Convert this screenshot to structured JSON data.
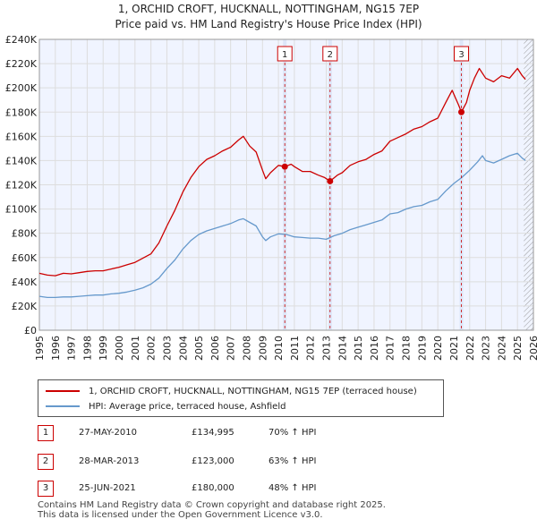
{
  "chart_data": {
    "type": "line",
    "title": "1, ORCHID CROFT, HUCKNALL, NOTTINGHAM, NG15 7EP",
    "subtitle": "Price paid vs. HM Land Registry's House Price Index (HPI)",
    "xlim": [
      1995,
      2026
    ],
    "ylim": [
      0,
      240000
    ],
    "x_ticks": [
      "1995",
      "1996",
      "1997",
      "1998",
      "1999",
      "2000",
      "2001",
      "2002",
      "2003",
      "2004",
      "2005",
      "2006",
      "2007",
      "2008",
      "2009",
      "2010",
      "2011",
      "2012",
      "2013",
      "2014",
      "2015",
      "2016",
      "2017",
      "2018",
      "2019",
      "2020",
      "2021",
      "2022",
      "2023",
      "2024",
      "2025",
      "2026"
    ],
    "y_ticks": [
      {
        "value": 0,
        "label": "£0"
      },
      {
        "value": 20000,
        "label": "£20K"
      },
      {
        "value": 40000,
        "label": "£40K"
      },
      {
        "value": 60000,
        "label": "£60K"
      },
      {
        "value": 80000,
        "label": "£80K"
      },
      {
        "value": 100000,
        "label": "£100K"
      },
      {
        "value": 120000,
        "label": "£120K"
      },
      {
        "value": 140000,
        "label": "£140K"
      },
      {
        "value": 160000,
        "label": "£160K"
      },
      {
        "value": 180000,
        "label": "£180K"
      },
      {
        "value": 200000,
        "label": "£200K"
      },
      {
        "value": 220000,
        "label": "£220K"
      },
      {
        "value": 240000,
        "label": "£240K"
      }
    ],
    "grid": true,
    "series": [
      {
        "name": "1, ORCHID CROFT, HUCKNALL, NOTTINGHAM, NG15 7EP (terraced house)",
        "color": "#cc0000",
        "points": [
          [
            1995.0,
            47000
          ],
          [
            1995.5,
            45500
          ],
          [
            1996.0,
            45000
          ],
          [
            1996.5,
            47000
          ],
          [
            1997.0,
            46500
          ],
          [
            1997.5,
            47500
          ],
          [
            1998.0,
            48500
          ],
          [
            1998.5,
            49000
          ],
          [
            1999.0,
            49000
          ],
          [
            1999.5,
            50500
          ],
          [
            2000.0,
            52000
          ],
          [
            2000.5,
            54000
          ],
          [
            2001.0,
            56000
          ],
          [
            2001.5,
            59500
          ],
          [
            2002.0,
            63000
          ],
          [
            2002.5,
            72000
          ],
          [
            2003.0,
            86000
          ],
          [
            2003.5,
            99000
          ],
          [
            2004.0,
            114000
          ],
          [
            2004.5,
            126000
          ],
          [
            2005.0,
            135000
          ],
          [
            2005.5,
            141000
          ],
          [
            2006.0,
            144000
          ],
          [
            2006.5,
            148000
          ],
          [
            2007.0,
            151000
          ],
          [
            2007.5,
            157000
          ],
          [
            2007.8,
            160000
          ],
          [
            2008.2,
            152000
          ],
          [
            2008.6,
            147000
          ],
          [
            2009.0,
            132000
          ],
          [
            2009.2,
            125000
          ],
          [
            2009.5,
            130000
          ],
          [
            2010.0,
            136000
          ],
          [
            2010.4,
            134995
          ],
          [
            2010.8,
            137000
          ],
          [
            2011.0,
            135000
          ],
          [
            2011.5,
            131000
          ],
          [
            2012.0,
            131000
          ],
          [
            2012.5,
            128000
          ],
          [
            2012.9,
            126000
          ],
          [
            2013.24,
            123000
          ],
          [
            2013.7,
            128000
          ],
          [
            2014.0,
            130000
          ],
          [
            2014.5,
            136000
          ],
          [
            2015.0,
            139000
          ],
          [
            2015.5,
            141000
          ],
          [
            2016.0,
            145000
          ],
          [
            2016.5,
            148000
          ],
          [
            2017.0,
            156000
          ],
          [
            2017.5,
            159000
          ],
          [
            2018.0,
            162000
          ],
          [
            2018.5,
            166000
          ],
          [
            2019.0,
            168000
          ],
          [
            2019.5,
            172000
          ],
          [
            2020.0,
            175000
          ],
          [
            2020.5,
            188000
          ],
          [
            2020.9,
            198000
          ],
          [
            2021.1,
            192000
          ],
          [
            2021.3,
            186000
          ],
          [
            2021.48,
            180000
          ],
          [
            2021.8,
            188000
          ],
          [
            2022.0,
            198000
          ],
          [
            2022.3,
            208000
          ],
          [
            2022.6,
            216000
          ],
          [
            2023.0,
            208000
          ],
          [
            2023.5,
            205000
          ],
          [
            2024.0,
            210000
          ],
          [
            2024.5,
            208000
          ],
          [
            2025.0,
            216000
          ],
          [
            2025.3,
            210000
          ],
          [
            2025.5,
            207000
          ]
        ]
      },
      {
        "name": "HPI: Average price, terraced house, Ashfield",
        "color": "#6699cc",
        "points": [
          [
            1995.0,
            28000
          ],
          [
            1995.5,
            27000
          ],
          [
            1996.0,
            27000
          ],
          [
            1996.5,
            27500
          ],
          [
            1997.0,
            27500
          ],
          [
            1997.5,
            28000
          ],
          [
            1998.0,
            28500
          ],
          [
            1998.5,
            29000
          ],
          [
            1999.0,
            29000
          ],
          [
            1999.5,
            30000
          ],
          [
            2000.0,
            30500
          ],
          [
            2000.5,
            31500
          ],
          [
            2001.0,
            33000
          ],
          [
            2001.5,
            35000
          ],
          [
            2002.0,
            38000
          ],
          [
            2002.5,
            43000
          ],
          [
            2003.0,
            51000
          ],
          [
            2003.5,
            58000
          ],
          [
            2004.0,
            67000
          ],
          [
            2004.5,
            74000
          ],
          [
            2005.0,
            79000
          ],
          [
            2005.5,
            82000
          ],
          [
            2006.0,
            84000
          ],
          [
            2006.5,
            86000
          ],
          [
            2007.0,
            88000
          ],
          [
            2007.5,
            91000
          ],
          [
            2007.8,
            92000
          ],
          [
            2008.2,
            89000
          ],
          [
            2008.6,
            86000
          ],
          [
            2009.0,
            77000
          ],
          [
            2009.2,
            74000
          ],
          [
            2009.5,
            77000
          ],
          [
            2010.0,
            79500
          ],
          [
            2010.5,
            79000
          ],
          [
            2011.0,
            77000
          ],
          [
            2011.5,
            76500
          ],
          [
            2012.0,
            76000
          ],
          [
            2012.5,
            76000
          ],
          [
            2013.0,
            75000
          ],
          [
            2013.5,
            78000
          ],
          [
            2014.0,
            80000
          ],
          [
            2014.5,
            83000
          ],
          [
            2015.0,
            85000
          ],
          [
            2015.5,
            87000
          ],
          [
            2016.0,
            89000
          ],
          [
            2016.5,
            91000
          ],
          [
            2017.0,
            96000
          ],
          [
            2017.5,
            97000
          ],
          [
            2018.0,
            100000
          ],
          [
            2018.5,
            102000
          ],
          [
            2019.0,
            103000
          ],
          [
            2019.5,
            106000
          ],
          [
            2020.0,
            108000
          ],
          [
            2020.5,
            115000
          ],
          [
            2021.0,
            121000
          ],
          [
            2021.5,
            126000
          ],
          [
            2022.0,
            132000
          ],
          [
            2022.5,
            139000
          ],
          [
            2022.8,
            144000
          ],
          [
            2023.0,
            140000
          ],
          [
            2023.5,
            138000
          ],
          [
            2024.0,
            141000
          ],
          [
            2024.5,
            144000
          ],
          [
            2025.0,
            146000
          ],
          [
            2025.3,
            142000
          ],
          [
            2025.5,
            140000
          ]
        ]
      }
    ],
    "sales": [
      {
        "num": "1",
        "x": 2010.4,
        "value": 134995
      },
      {
        "num": "2",
        "x": 2013.24,
        "value": 123000
      },
      {
        "num": "3",
        "x": 2021.48,
        "value": 180000
      }
    ],
    "hatch_start": 2025.4,
    "marker_color": "#cc0000",
    "grid_color": "#dddddd",
    "background_color": "#f0f4ff",
    "band_color": "#dde6f8"
  },
  "legend": {
    "items": [
      {
        "label": "1, ORCHID CROFT, HUCKNALL, NOTTINGHAM, NG15 7EP (terraced house)",
        "color": "#cc0000"
      },
      {
        "label": "HPI: Average price, terraced house, Ashfield",
        "color": "#6699cc"
      }
    ]
  },
  "sales_table": [
    {
      "num": "1",
      "date": "27-MAY-2010",
      "price": "£134,995",
      "hpi": "70% ↑ HPI"
    },
    {
      "num": "2",
      "date": "28-MAR-2013",
      "price": "£123,000",
      "hpi": "63% ↑ HPI"
    },
    {
      "num": "3",
      "date": "25-JUN-2021",
      "price": "£180,000",
      "hpi": "48% ↑ HPI"
    }
  ],
  "footer": {
    "line1": "Contains HM Land Registry data © Crown copyright and database right 2025.",
    "line2": "This data is licensed under the Open Government Licence v3.0."
  }
}
